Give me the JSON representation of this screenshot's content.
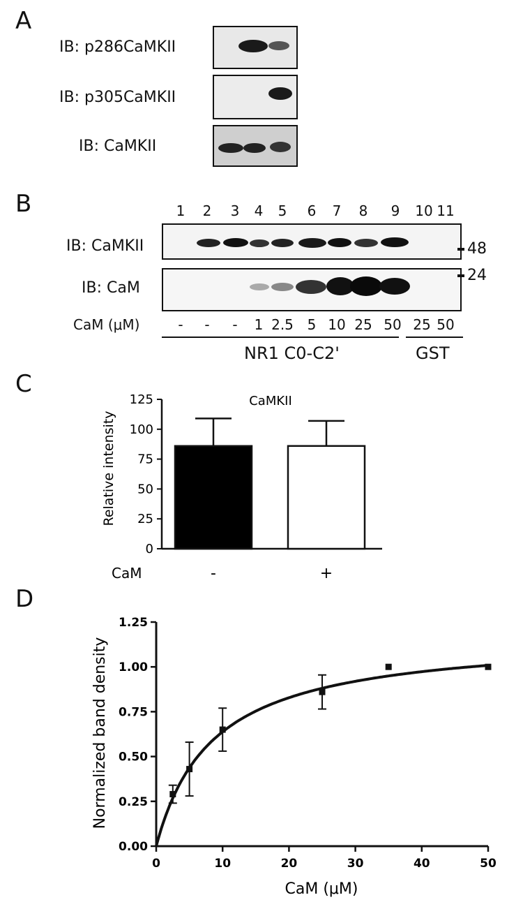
{
  "panels": {
    "a": "A",
    "b": "B",
    "c": "C",
    "d": "D"
  },
  "panel_a": {
    "rows": [
      "IB: p286CaMKII",
      "IB: p305CaMKII",
      "IB: CaMKII"
    ]
  },
  "panel_b": {
    "lanes": [
      "1",
      "2",
      "3",
      "4",
      "5",
      "6",
      "7",
      "8",
      "9",
      "10",
      "11"
    ],
    "row_labels": [
      "IB: CaMKII",
      "IB: CaM"
    ],
    "markers": [
      "48",
      "24"
    ],
    "cam_label": "CaM (μM)",
    "cam_values": [
      "-",
      "-",
      "-",
      "1",
      "2.5",
      "5",
      "10",
      "25",
      "50",
      "25",
      "50"
    ],
    "group_labels": [
      "NR1 C0-C2'",
      "GST"
    ]
  },
  "chart_data": [
    {
      "type": "bar",
      "title": "CaMKII",
      "ylabel": "Relative intensity",
      "xlabel": "CaM",
      "categories": [
        "-",
        "+"
      ],
      "values": [
        86,
        86
      ],
      "errors": [
        23,
        21
      ],
      "bar_fill": [
        "#000000",
        "#ffffff"
      ],
      "ylim": [
        0,
        125
      ],
      "yticks": [
        "0",
        "25",
        "50",
        "75",
        "100",
        "125"
      ]
    },
    {
      "type": "scatter",
      "xlabel": "CaM (μM)",
      "ylabel": "Normalized band density",
      "xlim": [
        0,
        50
      ],
      "ylim": [
        0,
        1.25
      ],
      "xticks": [
        "0",
        "10",
        "20",
        "30",
        "40",
        "50"
      ],
      "yticks": [
        "0.00",
        "0.25",
        "0.50",
        "0.75",
        "1.00",
        "1.25"
      ],
      "points": [
        {
          "x": 2.5,
          "y": 0.29,
          "err": 0.05
        },
        {
          "x": 5,
          "y": 0.43,
          "err": 0.15
        },
        {
          "x": 10,
          "y": 0.65,
          "err": 0.12
        },
        {
          "x": 25,
          "y": 0.86,
          "err": 0.095
        },
        {
          "x": 35,
          "y": 1.0,
          "err": 0
        },
        {
          "x": 50,
          "y": 1.0,
          "err": 0
        }
      ],
      "fit": {
        "model": "hyperbolic",
        "bmax": 1.18,
        "kd": 8.5
      }
    }
  ]
}
